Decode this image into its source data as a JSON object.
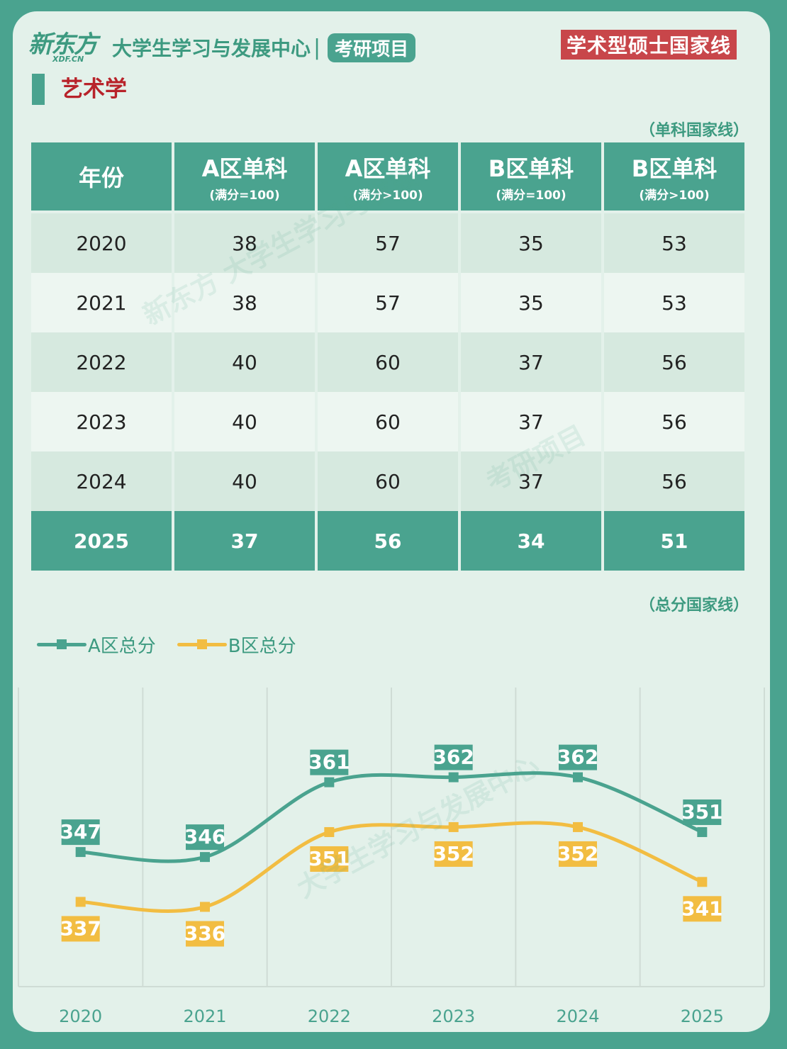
{
  "header": {
    "logo_text": "新东方",
    "logo_sub": "XDF.CN",
    "org_name": "大学生学习与发展中心",
    "org_separator": "|",
    "program_pill": "考研项目",
    "badge": "学术型硕士国家线"
  },
  "subject": "艺术学",
  "table_note": "（单科国家线）",
  "chart_note": "（总分国家线）",
  "table": {
    "headers": [
      {
        "title": "年份",
        "sub": ""
      },
      {
        "title": "A区单科",
        "sub": "(满分=100)"
      },
      {
        "title": "A区单科",
        "sub": "(满分>100)"
      },
      {
        "title": "B区单科",
        "sub": "(满分=100)"
      },
      {
        "title": "B区单科",
        "sub": "(满分>100)"
      }
    ],
    "rows": [
      [
        "2020",
        "38",
        "57",
        "35",
        "53"
      ],
      [
        "2021",
        "38",
        "57",
        "35",
        "53"
      ],
      [
        "2022",
        "40",
        "60",
        "37",
        "56"
      ],
      [
        "2023",
        "40",
        "60",
        "37",
        "56"
      ],
      [
        "2024",
        "40",
        "60",
        "37",
        "56"
      ],
      [
        "2025",
        "37",
        "56",
        "34",
        "51"
      ]
    ]
  },
  "chart_data": {
    "type": "line",
    "title": "总分国家线",
    "categories": [
      "2020",
      "2021",
      "2022",
      "2023",
      "2024",
      "2025"
    ],
    "series": [
      {
        "name": "A区总分",
        "color": "#4aa38f",
        "values": [
          347,
          346,
          361,
          362,
          362,
          351
        ]
      },
      {
        "name": "B区总分",
        "color": "#f2bd42",
        "values": [
          337,
          336,
          351,
          352,
          352,
          341
        ]
      }
    ],
    "ylim": [
      320,
      380
    ],
    "xlabel": "",
    "ylabel": ""
  }
}
